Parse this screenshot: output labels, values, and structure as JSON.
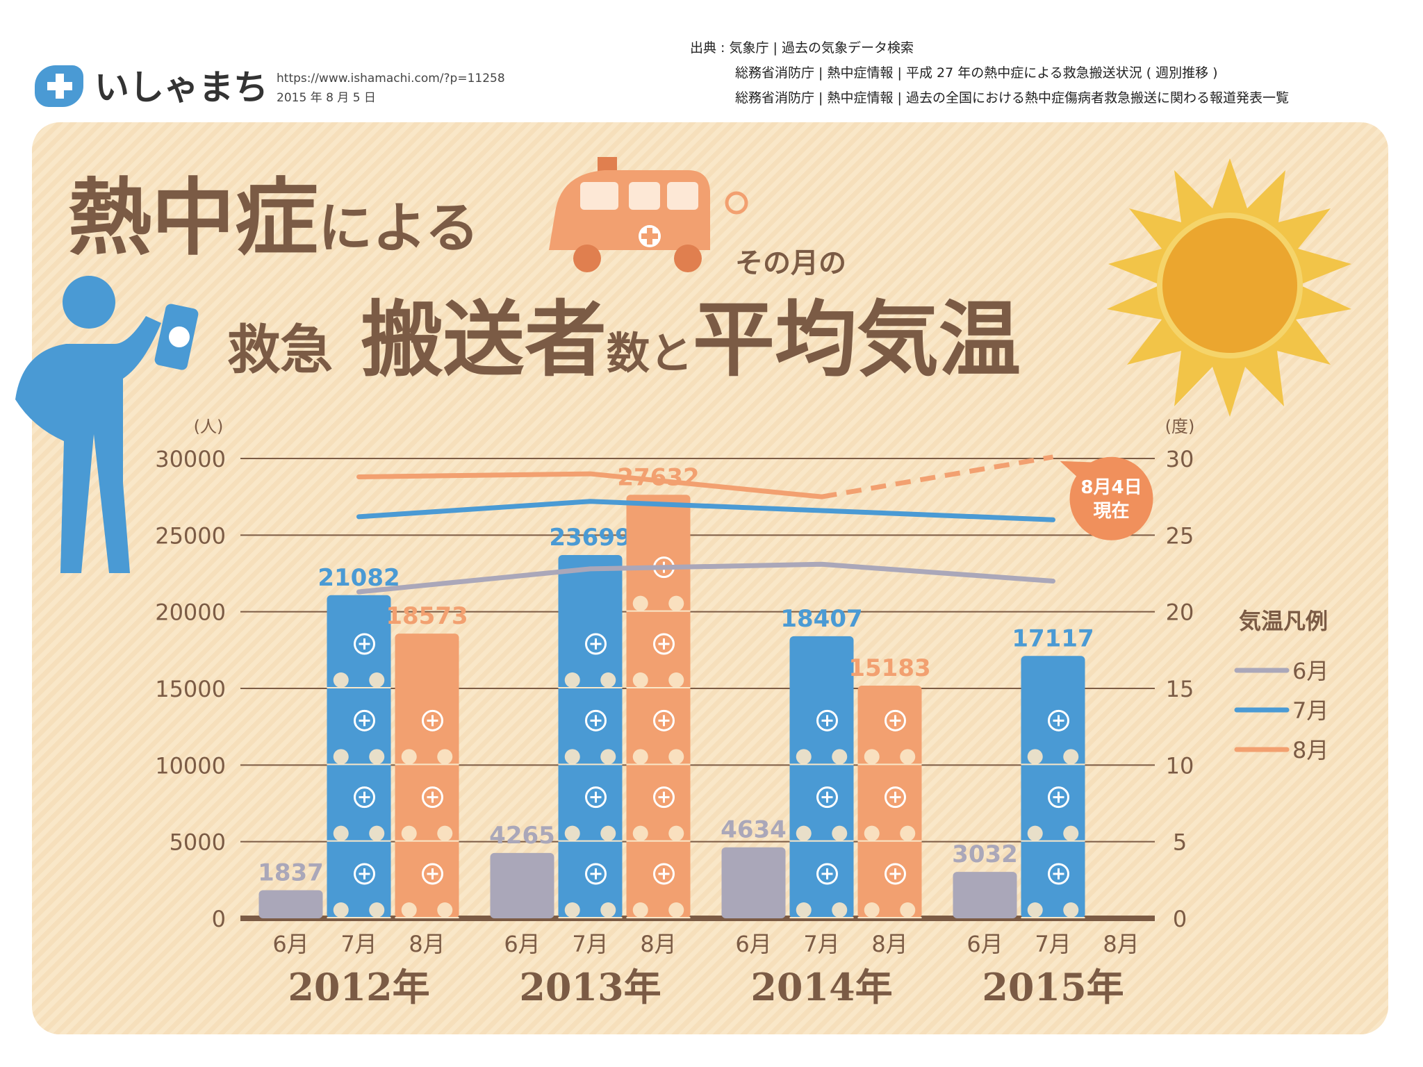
{
  "header": {
    "logo_text": "いしゃまち",
    "url": "https://www.ishamachi.com/?p=11258",
    "date": "2015 年 8 月 5 日",
    "sources": [
      "出典 : 気象庁 | 過去の気象データ検索",
      "総務省消防庁 | 熱中症情報 | 平成 27 年の熱中症による救急搬送状況 ( 週別推移 )",
      "総務省消防庁 | 熱中症情報 | 過去の全国における熱中症傷病者救急搬送に関わる報道発表一覧"
    ]
  },
  "chart_data": {
    "type": "bar",
    "title_parts": [
      "熱中症",
      "による",
      "救急",
      "搬送者",
      "数と",
      "その月の",
      "平均気温"
    ],
    "y_label": "(人)",
    "y2_label": "(度)",
    "categories": [
      "2012年",
      "2013年",
      "2014年",
      "2015年"
    ],
    "series": [
      {
        "name": "6月",
        "color": "#aaa7b9",
        "values": [
          1837,
          4265,
          4634,
          3032
        ]
      },
      {
        "name": "7月",
        "color": "#4a9ad4",
        "values": [
          21082,
          23699,
          18407,
          17117
        ]
      },
      {
        "name": "8月",
        "color": "#f2a070",
        "values": [
          18573,
          27632,
          15183,
          null
        ]
      }
    ],
    "line_series": [
      {
        "name": "6月",
        "color": "#aaa7b9",
        "axis": "y2",
        "values": [
          21.3,
          22.8,
          23.1,
          22.0
        ]
      },
      {
        "name": "7月",
        "color": "#4a9ad4",
        "axis": "y2",
        "values": [
          26.2,
          27.2,
          26.6,
          26.0
        ]
      },
      {
        "name": "8月",
        "color": "#f2a070",
        "axis": "y2",
        "values": [
          28.8,
          29.0,
          27.5,
          30.1
        ],
        "dash_from_index": 2
      }
    ],
    "annotation": [
      "8月4日",
      "現在"
    ],
    "legend_title": "気温凡例",
    "ylim": [
      0,
      30000
    ],
    "yticks": [
      0,
      5000,
      10000,
      15000,
      20000,
      25000,
      30000
    ],
    "y2lim": [
      0,
      30
    ],
    "y2ticks": [
      0,
      5,
      10,
      15,
      20,
      25,
      30
    ],
    "grid": true,
    "legend_position": "right"
  }
}
